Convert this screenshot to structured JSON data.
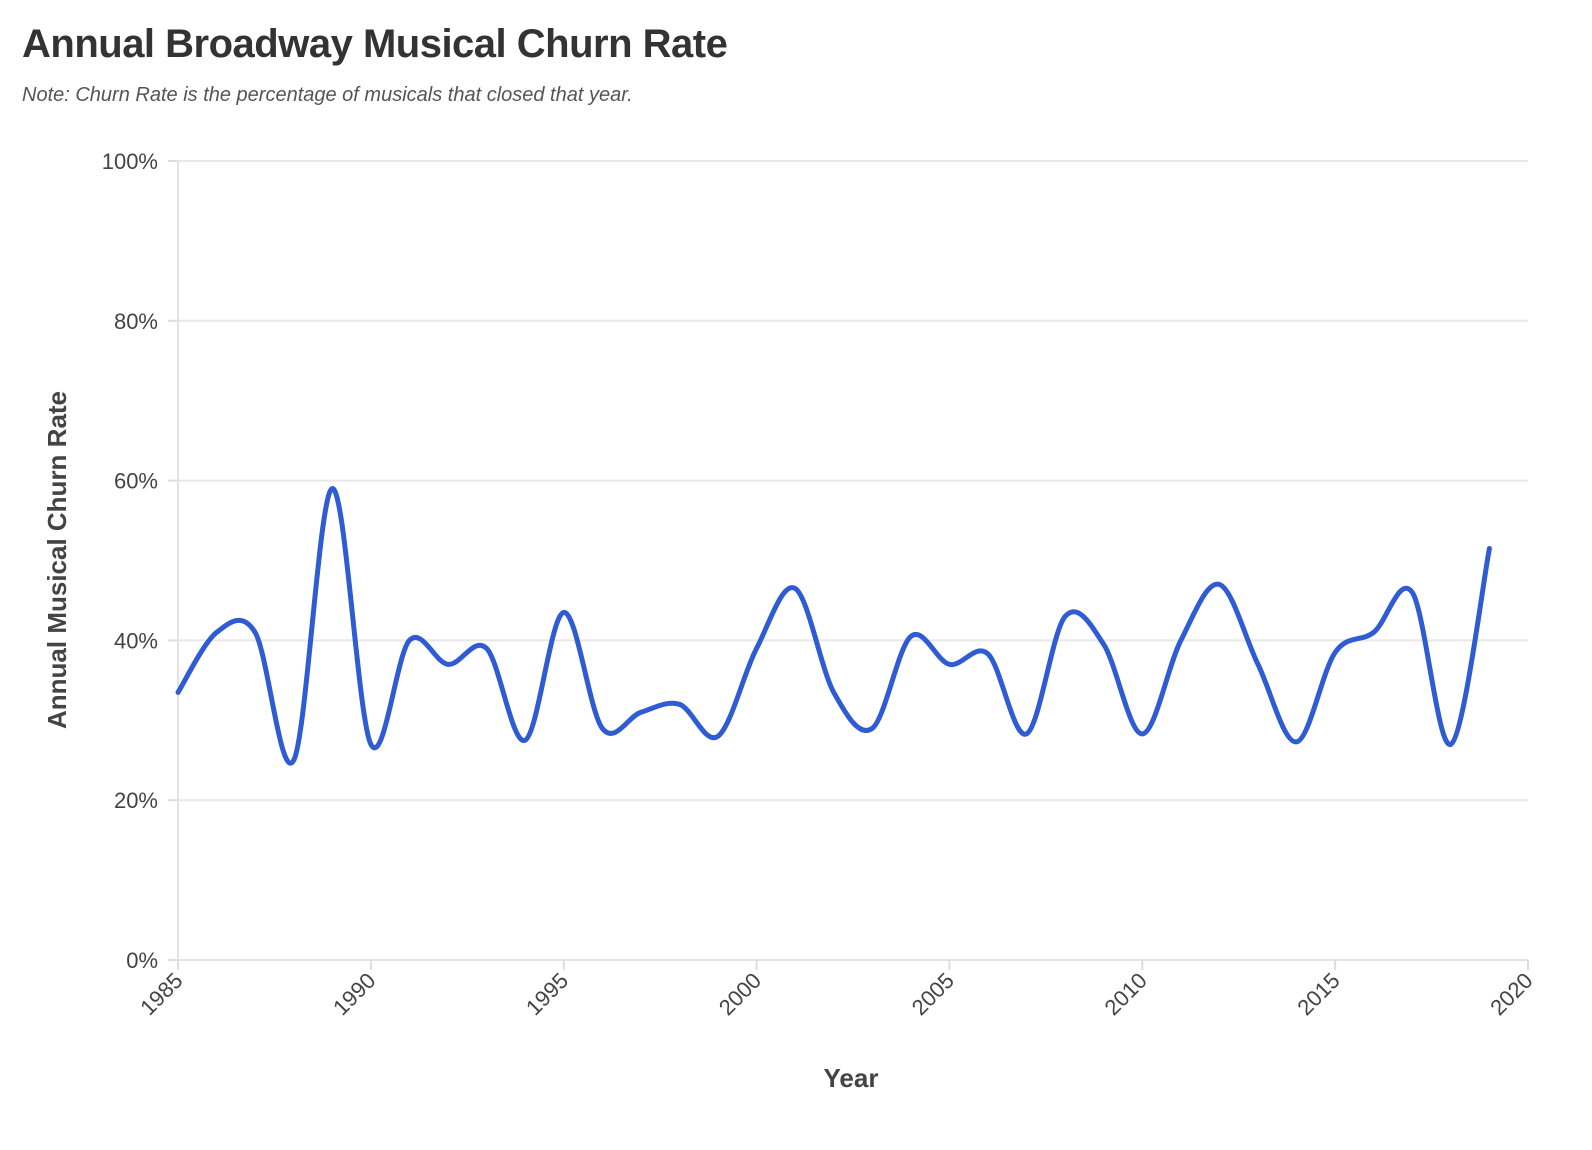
{
  "title": "Annual Broadway Musical Churn Rate",
  "subtitle": "Note: Churn Rate is the percentage of musicals that closed that year.",
  "chart_data": {
    "type": "line",
    "title": "Annual Broadway Musical Churn Rate",
    "subtitle": "Note: Churn Rate is the percentage of musicals that closed that year.",
    "xlabel": "Year",
    "ylabel": "Annual Musical Churn Rate",
    "xlim": [
      1985,
      2020
    ],
    "ylim": [
      0,
      100
    ],
    "x_ticks": [
      1985,
      1990,
      1995,
      2000,
      2005,
      2010,
      2015,
      2020
    ],
    "y_ticks": [
      0,
      20,
      40,
      60,
      80,
      100
    ],
    "y_tick_labels": [
      "0%",
      "20%",
      "40%",
      "60%",
      "80%",
      "100%"
    ],
    "grid": true,
    "line_color": "#2f5bd3",
    "series": [
      {
        "x": [
          1985,
          1986,
          1987,
          1988,
          1989,
          1990,
          1991,
          1992,
          1993,
          1994,
          1995,
          1996,
          1997,
          1998,
          1999,
          2000,
          2001,
          2002,
          2003,
          2004,
          2005,
          2006,
          2007,
          2008,
          2009,
          2010,
          2011,
          2012,
          2013,
          2014,
          2015,
          2016,
          2017,
          2018,
          2019
        ],
        "values": [
          33.5,
          41.0,
          41.0,
          25.0,
          59.0,
          27.0,
          40.0,
          37.0,
          39.0,
          27.5,
          43.5,
          29.0,
          31.0,
          32.0,
          28.0,
          39.0,
          46.5,
          33.5,
          29.0,
          40.5,
          37.0,
          38.3,
          28.3,
          43.0,
          39.5,
          28.3,
          40.0,
          47.0,
          37.0,
          27.3,
          38.5,
          41.0,
          46.0,
          27.0,
          51.5
        ]
      }
    ]
  }
}
